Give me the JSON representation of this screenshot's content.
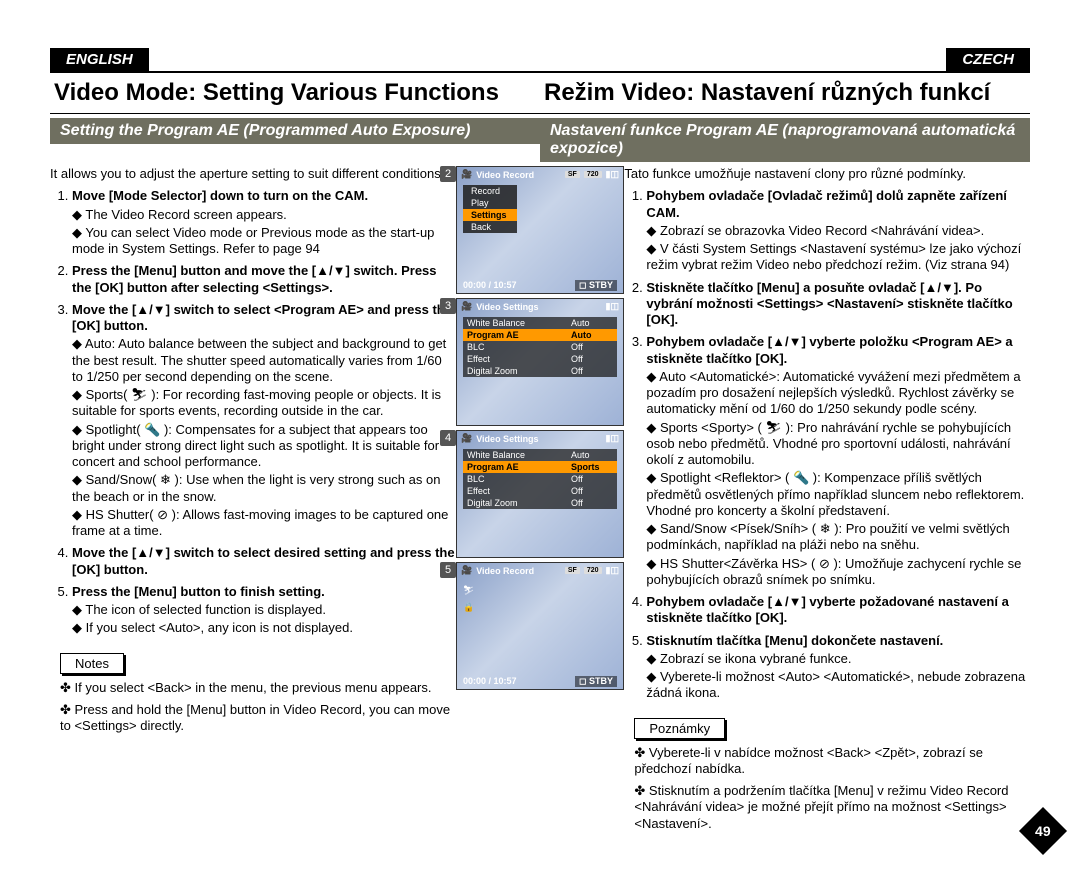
{
  "page_number": "49",
  "lang_tabs": {
    "left": "ENGLISH",
    "right": "CZECH"
  },
  "titles": {
    "left": "Video Mode: Setting Various Functions",
    "right": "Režim Video: Nastavení různých funkcí"
  },
  "subtitles": {
    "left": "Setting the Program AE (Programmed Auto Exposure)",
    "right": "Nastavení funkce Program AE (naprogramovaná automatická expozice)"
  },
  "left": {
    "intro": "It allows you to adjust the aperture setting to suit different conditions.",
    "steps": [
      {
        "head": "Move [Mode Selector] down to turn on the CAM.",
        "subs": [
          "The Video Record screen appears.",
          "You can select Video mode or Previous mode as the start-up mode in System Settings. Refer to page 94"
        ]
      },
      {
        "head": "Press the [Menu] button and move the [▲/▼] switch. Press the [OK] button after selecting <Settings>.",
        "subs": []
      },
      {
        "head": "Move the [▲/▼] switch to select <Program AE> and press the [OK] button.",
        "subs": [
          "Auto: Auto balance between the subject and background to get the best result. The shutter speed automatically varies from 1/60 to 1/250 per second depending on the scene.",
          "Sports( ⛷ ): For recording fast-moving people or objects. It is suitable for sports events, recording outside in the car.",
          "Spotlight( 🔦 ): Compensates for a subject that appears too bright under strong direct light such as spotlight. It is suitable for concert and school performance.",
          "Sand/Snow( ❄ ): Use when the light is very strong such as on the beach or in the snow.",
          "HS Shutter( ⊘ ): Allows fast-moving images to be captured one frame at a time."
        ]
      },
      {
        "head": "Move the [▲/▼] switch to select desired setting and press the [OK] button.",
        "subs": []
      },
      {
        "head": "Press the [Menu] button to finish setting.",
        "subs": [
          "The icon of selected function is displayed.",
          "If you select <Auto>, any icon is not displayed."
        ]
      }
    ],
    "notes_label": "Notes",
    "notes": [
      "If you select <Back> in the menu, the previous menu appears.",
      "Press and hold the [Menu] button in Video Record, you can move to <Settings> directly."
    ]
  },
  "right": {
    "intro": "Tato funkce umožňuje nastavení clony pro různé podmínky.",
    "steps": [
      {
        "head": "Pohybem ovladače [Ovladač režimů] dolů zapněte zařízení CAM.",
        "subs": [
          "Zobrazí se obrazovka Video Record <Nahrávání videa>.",
          "V části System Settings <Nastavení systému> lze jako výchozí režim vybrat režim Video nebo předchozí režim. (Viz strana 94)"
        ]
      },
      {
        "head": "Stiskněte tlačítko [Menu] a posuňte ovladač [▲/▼]. Po vybrání možnosti <Settings> <Nastavení> stiskněte tlačítko [OK].",
        "subs": []
      },
      {
        "head": "Pohybem ovladače [▲/▼] vyberte položku <Program AE> a stiskněte tlačítko [OK].",
        "subs": [
          "Auto <Automatické>: Automatické vyvážení mezi předmětem a pozadím pro dosažení nejlepších výsledků. Rychlost závěrky se automaticky mění od 1/60 do 1/250 sekundy podle scény.",
          "Sports <Sporty> ( ⛷ ): Pro nahrávání rychle se pohybujících osob nebo předmětů. Vhodné pro sportovní události, nahrávání okolí z automobilu.",
          "Spotlight <Reflektor> ( 🔦 ): Kompenzace příliš světlých předmětů osvětlených přímo například sluncem nebo reflektorem. Vhodné pro koncerty a školní představení.",
          "Sand/Snow <Písek/Sníh> ( ❄ ): Pro použití ve velmi světlých podmínkách, například na pláži nebo na sněhu.",
          "HS Shutter<Závěrka HS> ( ⊘ ): Umožňuje zachycení rychle se pohybujících obrazů snímek po snímku."
        ]
      },
      {
        "head": "Pohybem ovladače [▲/▼] vyberte požadované nastavení a stiskněte tlačítko [OK].",
        "subs": []
      },
      {
        "head": "Stisknutím tlačítka [Menu] dokončete nastavení.",
        "subs": [
          "Zobrazí se ikona vybrané funkce.",
          "Vyberete-li možnost <Auto> <Automatické>, nebude zobrazena žádná ikona."
        ]
      }
    ],
    "notes_label": "Poznámky",
    "notes": [
      "Vyberete-li v nabídce možnost <Back> <Zpět>, zobrazí se předchozí nabídka.",
      "Stisknutím a podržením tlačítka [Menu] v režimu Video Record <Nahrávání videa> je možné přejít přímo na možnost <Settings> <Nastavení>."
    ]
  },
  "screens": [
    {
      "num": "2",
      "title": "Video Record",
      "type": "record-menu",
      "badges": [
        "SF",
        "720"
      ],
      "menu": [
        {
          "label": "Record",
          "hl": false
        },
        {
          "label": "Play",
          "hl": false
        },
        {
          "label": "Settings",
          "hl": true
        },
        {
          "label": "Back",
          "hl": false
        }
      ],
      "footer_left": "00:00 / 10:57",
      "footer_right": "◻ STBY"
    },
    {
      "num": "3",
      "title": "Video Settings",
      "type": "settings",
      "rows": [
        {
          "k": "White Balance",
          "v": "Auto",
          "hl": false
        },
        {
          "k": "Program AE",
          "v": "Auto",
          "hl": true
        },
        {
          "k": "BLC",
          "v": "Off",
          "hl": false
        },
        {
          "k": "Effect",
          "v": "Off",
          "hl": false
        },
        {
          "k": "Digital Zoom",
          "v": "Off",
          "hl": false
        }
      ]
    },
    {
      "num": "4",
      "title": "Video Settings",
      "type": "settings",
      "rows": [
        {
          "k": "White Balance",
          "v": "Auto",
          "hl": false
        },
        {
          "k": "Program AE",
          "v": "Sports",
          "hl": true
        },
        {
          "k": "BLC",
          "v": "Off",
          "hl": false
        },
        {
          "k": "Effect",
          "v": "Off",
          "hl": false
        },
        {
          "k": "Digital Zoom",
          "v": "Off",
          "hl": false
        }
      ]
    },
    {
      "num": "5",
      "title": "Video Record",
      "type": "record-plain",
      "badges": [
        "SF",
        "720"
      ],
      "footer_left": "00:00 / 10:57",
      "footer_right": "◻ STBY"
    }
  ]
}
